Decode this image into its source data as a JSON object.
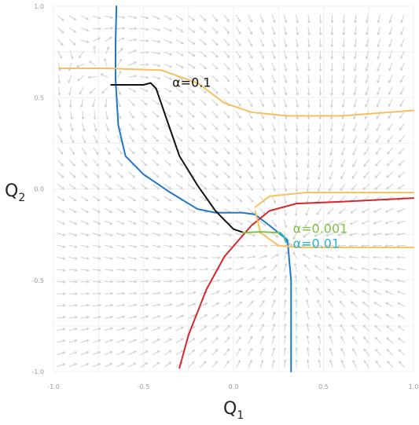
{
  "chart_data": {
    "type": "line",
    "xlabel": "Q",
    "xlabel_sub": "1",
    "ylabel": "Q",
    "ylabel_sub": "2",
    "xlim": [
      -1.0,
      1.0
    ],
    "ylim": [
      -1.0,
      1.0
    ],
    "grid": true,
    "x_ticks": [
      -1.0,
      -0.5,
      0.0,
      0.5,
      1.0
    ],
    "x_tick_labels": [
      "-1.0",
      "-0.5",
      "0.0",
      "0.5",
      "1.0"
    ],
    "y_ticks": [
      -1.0,
      -0.5,
      0.0,
      0.5,
      1.0
    ],
    "y_tick_labels": [
      "-1.0",
      "-0.5",
      "0.0",
      "0.5",
      "1.0"
    ],
    "vector_field": {
      "stable_point": [
        0.3,
        -0.3
      ],
      "unstable_point": [
        -0.65,
        0.58
      ],
      "color": "#cfcfcf"
    },
    "series": [
      {
        "id": "blue",
        "color": "#1f77c8",
        "x": [
          -0.65,
          -0.655,
          -0.655,
          -0.64,
          -0.6,
          -0.5,
          -0.35,
          -0.2,
          -0.1,
          0.05,
          0.12,
          0.2,
          0.3,
          0.32,
          0.32
        ],
        "y": [
          1.0,
          0.8,
          0.6,
          0.35,
          0.18,
          0.08,
          -0.02,
          -0.11,
          -0.13,
          -0.13,
          -0.14,
          -0.2,
          -0.28,
          -0.5,
          -1.0
        ]
      },
      {
        "id": "black",
        "color": "#111111",
        "x": [
          -0.68,
          -0.6,
          -0.5,
          -0.46,
          -0.43,
          -0.36,
          -0.3,
          -0.2,
          -0.1,
          0.0,
          0.06
        ],
        "y": [
          0.57,
          0.57,
          0.57,
          0.58,
          0.55,
          0.35,
          0.18,
          0.02,
          -0.12,
          -0.22,
          -0.24
        ]
      },
      {
        "id": "red",
        "color": "#d62728",
        "x": [
          -0.3,
          -0.25,
          -0.15,
          -0.05,
          0.1,
          0.2,
          0.35,
          0.6,
          1.0
        ],
        "y": [
          -0.98,
          -0.8,
          -0.55,
          -0.37,
          -0.2,
          -0.12,
          -0.08,
          -0.07,
          -0.05
        ]
      },
      {
        "id": "orange-top",
        "color": "#f5c060",
        "x": [
          -0.97,
          -0.7,
          -0.4,
          -0.2,
          -0.05,
          0.1,
          0.3,
          0.6,
          1.0
        ],
        "y": [
          0.66,
          0.66,
          0.65,
          0.58,
          0.47,
          0.42,
          0.4,
          0.4,
          0.43
        ]
      },
      {
        "id": "orange-upper-right",
        "color": "#f5c060",
        "x": [
          0.12,
          0.2,
          0.4,
          0.7,
          1.0
        ],
        "y": [
          -0.1,
          -0.04,
          -0.02,
          -0.02,
          -0.02
        ]
      },
      {
        "id": "orange-lower-right",
        "color": "#f5c060",
        "x": [
          0.12,
          0.15,
          0.25,
          0.35,
          0.5,
          0.7,
          1.0
        ],
        "y": [
          -0.12,
          -0.24,
          -0.31,
          -0.32,
          -0.32,
          -0.32,
          -0.32
        ]
      },
      {
        "id": "green",
        "color": "#7dc242",
        "x": [
          0.05,
          0.15,
          0.26,
          0.28,
          0.29
        ],
        "y": [
          -0.24,
          -0.235,
          -0.24,
          -0.26,
          -0.29
        ]
      },
      {
        "id": "cyan",
        "color": "#2bb5c0",
        "x": [
          0.26,
          0.28,
          0.29,
          0.3
        ],
        "y": [
          -0.24,
          -0.26,
          -0.28,
          -0.3
        ]
      }
    ],
    "annotations": [
      {
        "text": "α=0.1",
        "x": -0.34,
        "y": 0.58,
        "color": "#111111"
      },
      {
        "text": "α=0.001",
        "x": 0.33,
        "y": -0.22,
        "color": "#7dc242"
      },
      {
        "text": "α=0.01",
        "x": 0.33,
        "y": -0.3,
        "color": "#2bb5c0"
      }
    ]
  }
}
